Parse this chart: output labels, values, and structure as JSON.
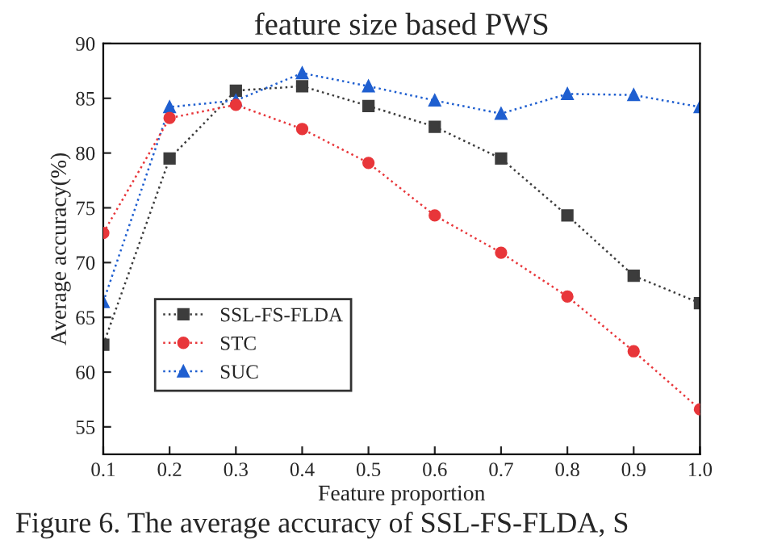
{
  "chart_data": {
    "type": "line",
    "title": "feature size based PWS",
    "xlabel": "Feature proportion",
    "ylabel": "Average accuracy(%)",
    "x": [
      0.1,
      0.2,
      0.3,
      0.4,
      0.5,
      0.6,
      0.7,
      0.8,
      0.9,
      1.0
    ],
    "series": [
      {
        "name": "SSL-FS-FLDA",
        "color": "#3c3c3c",
        "marker": "square",
        "values": [
          62.5,
          79.5,
          85.7,
          86.1,
          84.3,
          82.4,
          79.5,
          74.3,
          68.8,
          66.3
        ]
      },
      {
        "name": "STC",
        "color": "#e8363a",
        "marker": "circle",
        "values": [
          72.7,
          83.2,
          84.4,
          82.2,
          79.1,
          74.3,
          70.9,
          66.9,
          61.9,
          56.6
        ]
      },
      {
        "name": "SUC",
        "color": "#1f5fd0",
        "marker": "triangle",
        "values": [
          66.4,
          84.2,
          84.8,
          87.3,
          86.1,
          84.8,
          83.6,
          85.4,
          85.3,
          84.2
        ]
      }
    ],
    "line_style": "dotted",
    "xlim": [
      0.1,
      1.0
    ],
    "xticks": [
      0.1,
      0.2,
      0.3,
      0.4,
      0.5,
      0.6,
      0.7,
      0.8,
      0.9,
      {
        "value": 1.0,
        "label": "1.0"
      }
    ],
    "ylim": [
      52.5,
      90
    ],
    "yticks": [
      55,
      60,
      65,
      70,
      75,
      80,
      85,
      90
    ],
    "grid": false,
    "legend": "bottom left",
    "annotations": [
      "Figure 6. The average accuracy of SSL-FS-FLDA, S"
    ]
  }
}
